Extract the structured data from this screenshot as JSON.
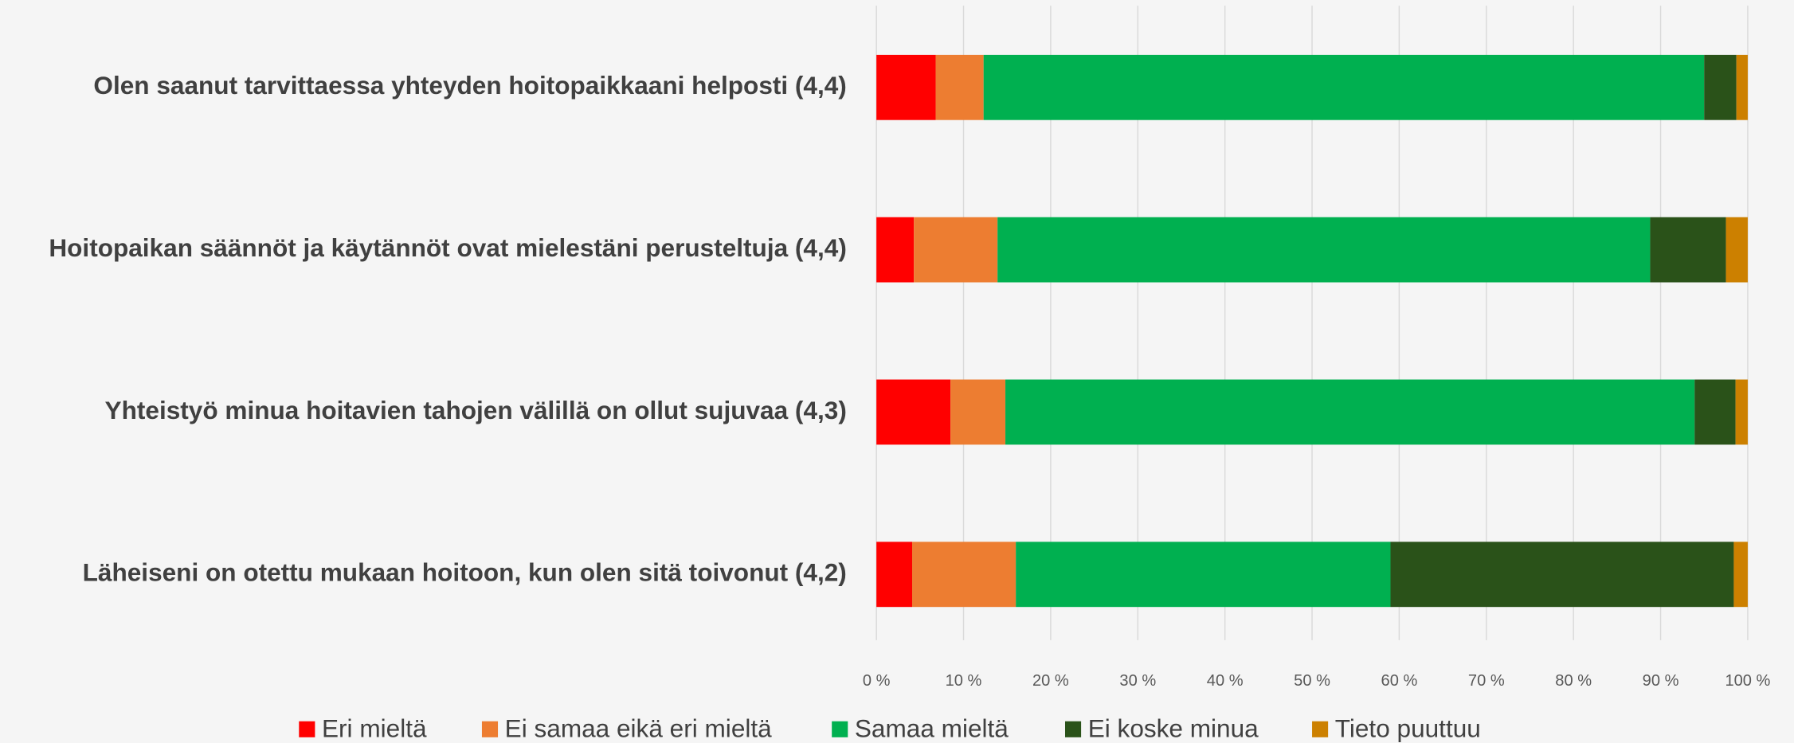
{
  "chart_data": {
    "type": "stacked_bar_horizontal",
    "categories": [
      "Olen saanut tarvittaessa yhteyden hoitopaikkaani helposti (4,4)",
      "Hoitopaikan säännöt ja käytännöt ovat mielestäni perusteltuja (4,4)",
      "Yhteistyö minua hoitavien tahojen välillä on ollut sujuvaa (4,3)",
      "Läheiseni on otettu mukaan hoitoon, kun olen sitä toivonut (4,2)"
    ],
    "series": [
      {
        "name": "Eri mieltä",
        "color": "#ff0000",
        "values": [
          6.8,
          4.3,
          8.5,
          4.1
        ]
      },
      {
        "name": "Ei samaa eikä eri mieltä",
        "color": "#ed7d31",
        "values": [
          5.5,
          9.6,
          6.3,
          11.9
        ]
      },
      {
        "name": "Samaa mieltä",
        "color": "#00b050",
        "values": [
          82.7,
          74.9,
          79.1,
          43.0
        ]
      },
      {
        "name": "Ei koske minua",
        "color": "#2a5219",
        "values": [
          3.7,
          8.7,
          4.7,
          39.4
        ]
      },
      {
        "name": "Tieto puuttuu",
        "color": "#cc8000",
        "values": [
          1.3,
          2.5,
          1.4,
          1.6
        ]
      }
    ],
    "xlim": [
      0,
      100
    ],
    "xticks": [
      {
        "value": 0,
        "label": "0 %"
      },
      {
        "value": 10,
        "label": "10 %"
      },
      {
        "value": 20,
        "label": "20 %"
      },
      {
        "value": 30,
        "label": "30 %"
      },
      {
        "value": 40,
        "label": "40 %"
      },
      {
        "value": 50,
        "label": "50 %"
      },
      {
        "value": 60,
        "label": "60 %"
      },
      {
        "value": 70,
        "label": "70 %"
      },
      {
        "value": 80,
        "label": "80 %"
      },
      {
        "value": 90,
        "label": "90 %"
      },
      {
        "value": 100,
        "label": "100 %"
      }
    ],
    "grid": true
  }
}
